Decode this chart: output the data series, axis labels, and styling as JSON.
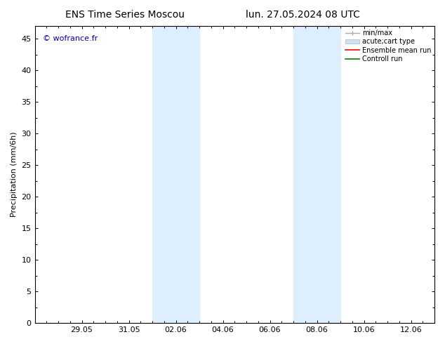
{
  "title_left": "ENS Time Series Moscou",
  "title_right": "lun. 27.05.2024 08 UTC",
  "ylabel": "Precipitation (mm/6h)",
  "watermark": "© wofrance.fr",
  "watermark_color": "#0000cc",
  "ylim": [
    0,
    47
  ],
  "yticks": [
    0,
    5,
    10,
    15,
    20,
    25,
    30,
    35,
    40,
    45
  ],
  "xtick_labels": [
    "29.05",
    "31.05",
    "02.06",
    "04.06",
    "06.06",
    "08.06",
    "10.06",
    "12.06"
  ],
  "x_min": 0,
  "x_max": 17,
  "xtick_positions": [
    2,
    4,
    6,
    8,
    10,
    12,
    14,
    16
  ],
  "shaded_regions": [
    {
      "x_start": 5.0,
      "x_end": 7.0,
      "color": "#ddeeff"
    },
    {
      "x_start": 11.0,
      "x_end": 13.0,
      "color": "#ddeeff"
    }
  ],
  "background_color": "#ffffff",
  "minmax_color": "#aaaaaa",
  "box_face_color": "#cce0f0",
  "box_edge_color": "#aabbcc",
  "ensemble_color": "red",
  "control_color": "green",
  "font_size_title": 10,
  "font_size_axis": 8,
  "font_size_tick": 8,
  "font_size_legend": 7,
  "font_size_watermark": 8
}
